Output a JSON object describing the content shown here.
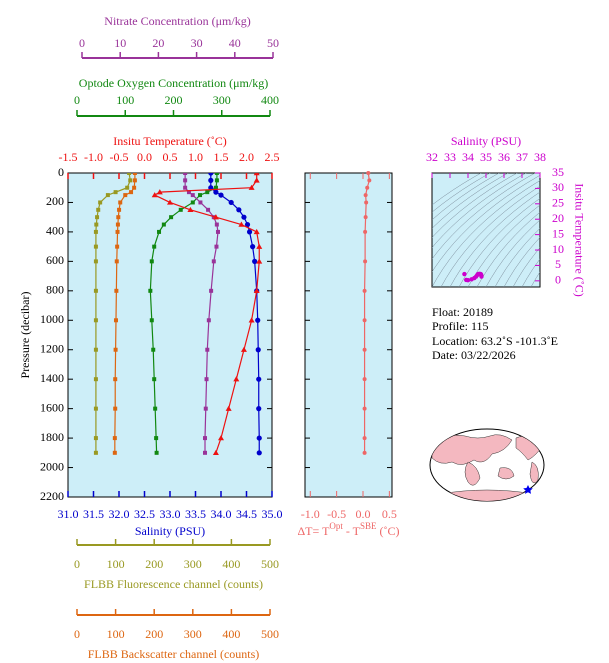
{
  "chart_data": [
    {
      "type": "profile",
      "ylabel": "Pressure (decibar)",
      "ylim": [
        0,
        2200
      ],
      "y_inverted": true,
      "yticks": [
        0,
        200,
        400,
        600,
        800,
        1000,
        1200,
        1400,
        1600,
        1800,
        2000,
        2200
      ],
      "plot_color": "#cdeef8",
      "pressure": [
        0,
        50,
        100,
        130,
        150,
        200,
        250,
        300,
        350,
        400,
        500,
        600,
        800,
        1000,
        1200,
        1400,
        1600,
        1800,
        1900
      ],
      "x_axes": [
        {
          "label": "Nitrate Concentration (μm/kg)",
          "color": "#993399",
          "xlim": [
            0,
            50
          ],
          "xticks": [
            0,
            10,
            20,
            30,
            40,
            50
          ]
        },
        {
          "label": "Optode Oxygen Concentration (μm/kg)",
          "color": "#118811",
          "xlim": [
            0,
            400
          ],
          "xticks": [
            0,
            100,
            200,
            300,
            400
          ]
        },
        {
          "label": "Insitu Temperature (˚C)",
          "color": "#ee1111",
          "xlim": [
            -1.5,
            2.5
          ],
          "xticks": [
            -1.5,
            {
              "value": -1,
              "label": "-1.0"
            },
            -0.5,
            {
              "value": 0,
              "label": "0.0"
            },
            0.5,
            {
              "value": 1,
              "label": "1.0"
            },
            1.5,
            {
              "value": 2,
              "label": "2.0"
            },
            2.5
          ]
        },
        {
          "label": "Salinity (PSU)",
          "color": "#0000cc",
          "xlim": [
            31,
            35
          ],
          "xticks": [
            {
              "value": 31,
              "label": "31.0"
            },
            31.5,
            {
              "value": 32,
              "label": "32.0"
            },
            32.5,
            {
              "value": 33,
              "label": "33.0"
            },
            33.5,
            {
              "value": 34,
              "label": "34.0"
            },
            34.5,
            {
              "value": 35,
              "label": "35.0"
            }
          ]
        },
        {
          "label": "FLBB Fluorescence channel (counts)",
          "color": "#999922",
          "xlim": [
            0,
            500
          ],
          "xticks": [
            0,
            100,
            200,
            300,
            400,
            500
          ]
        },
        {
          "label": "FLBB Backscatter channel (counts)",
          "color": "#dd6611",
          "xlim": [
            0,
            500
          ],
          "xticks": [
            0,
            100,
            200,
            300,
            400,
            500
          ]
        }
      ],
      "series": [
        {
          "axis": 4,
          "marker": "square",
          "color": "#999922",
          "values": [
            135,
            138,
            130,
            100,
            80,
            60,
            55,
            52,
            50,
            49,
            49,
            49,
            49,
            49,
            49,
            49,
            49,
            49,
            49
          ]
        },
        {
          "axis": 5,
          "marker": "square",
          "color": "#dd6611",
          "values": [
            150,
            150,
            148,
            140,
            125,
            112,
            109,
            107,
            106,
            105,
            104,
            103,
            102,
            101,
            100,
            99,
            99,
            98,
            98
          ]
        },
        {
          "axis": 1,
          "marker": "square",
          "color": "#118811",
          "values": [
            290,
            290,
            288,
            270,
            255,
            240,
            215,
            195,
            180,
            170,
            160,
            155,
            152,
            155,
            158,
            160,
            162,
            164,
            165
          ]
        },
        {
          "axis": 0,
          "marker": "square",
          "color": "#993399",
          "values": [
            27,
            27,
            27,
            28,
            29,
            31,
            33,
            34.5,
            35.3,
            35.6,
            35.2,
            34.5,
            33.8,
            33.2,
            32.8,
            32.6,
            32.4,
            32.2,
            32.2
          ]
        },
        {
          "axis": 3,
          "marker": "circle",
          "color": "#0000cc",
          "values": [
            33.8,
            33.8,
            33.8,
            33.9,
            34.0,
            34.2,
            34.35,
            34.45,
            34.52,
            34.56,
            34.62,
            34.66,
            34.7,
            34.72,
            34.73,
            34.74,
            34.74,
            34.75,
            34.75
          ]
        },
        {
          "axis": 2,
          "marker": "triangle",
          "color": "#ee1111",
          "values": [
            2.2,
            2.2,
            2.1,
            0.3,
            0.2,
            0.5,
            0.9,
            1.4,
            1.9,
            2.2,
            2.25,
            2.25,
            2.2,
            2.1,
            1.95,
            1.8,
            1.65,
            1.5,
            1.4
          ]
        }
      ]
    },
    {
      "type": "profile_dt",
      "xlabel_parts": [
        "ΔT= T",
        "Opt",
        " - T",
        "SBE",
        " (˚C)"
      ],
      "color": "#ee6666",
      "plot_color": "#cdeef8",
      "xlim": [
        -1.1,
        0.55
      ],
      "xticks": [
        {
          "value": -1,
          "label": "-1.0"
        },
        -0.5,
        {
          "value": 0,
          "label": "0.0"
        },
        0.5
      ],
      "ylim": [
        0,
        2200
      ],
      "pressure": [
        0,
        50,
        100,
        150,
        200,
        300,
        400,
        600,
        800,
        1000,
        1200,
        1400,
        1600,
        1800,
        1900
      ],
      "values": [
        0.1,
        0.12,
        0.08,
        0.05,
        0.06,
        0.05,
        0.04,
        0.04,
        0.03,
        0.03,
        0.03,
        0.03,
        0.03,
        0.03,
        0.03
      ]
    },
    {
      "type": "scatter",
      "xlabel": "Salinity (PSU)",
      "ylabel": "Insitu Temperature (˚C)",
      "color": "#cc00cc",
      "plot_color": "#cdeef8",
      "xlim": [
        32,
        38
      ],
      "xticks": [
        32,
        33,
        34,
        35,
        36,
        37,
        38
      ],
      "ylim": [
        -2,
        35
      ],
      "yticks": [
        0,
        5,
        10,
        15,
        20,
        25,
        30,
        35
      ],
      "x": [
        33.8,
        33.9,
        34.0,
        34.2,
        34.35,
        34.45,
        34.52,
        34.56,
        34.62,
        34.66,
        34.7,
        34.72,
        34.74,
        34.75
      ],
      "values": [
        2.2,
        0.3,
        0.2,
        0.5,
        0.9,
        1.4,
        1.9,
        2.2,
        2.25,
        2.25,
        2.2,
        2.1,
        1.8,
        1.4
      ]
    }
  ],
  "info": {
    "float": "Float:  20189",
    "profile": "Profile:  115",
    "location": "Location:  63.2˚S  -101.3˚E",
    "date": "Date:  03/22/2026"
  }
}
